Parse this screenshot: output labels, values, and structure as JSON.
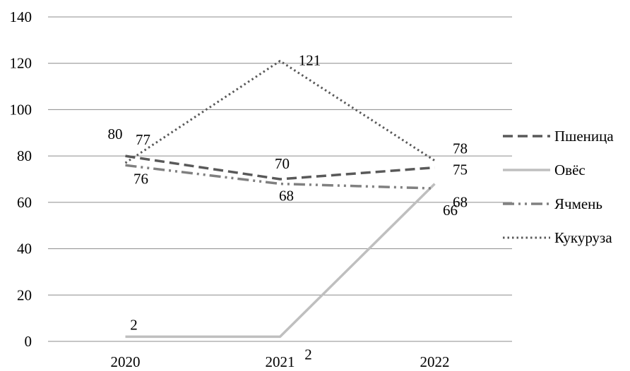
{
  "chart_data": {
    "type": "line",
    "x": [
      "2020",
      "2021",
      "2022"
    ],
    "ylim": [
      0,
      140
    ],
    "yticks": [
      0,
      20,
      40,
      60,
      80,
      100,
      120,
      140
    ],
    "grid": true,
    "legend_position": "right",
    "series": [
      {
        "name": "Пшеница",
        "values": [
          80,
          70,
          75
        ],
        "labels": [
          "80",
          "70",
          "75"
        ],
        "color": "#595959",
        "style": "dashed"
      },
      {
        "name": "Овёс",
        "values": [
          2,
          2,
          68
        ],
        "labels": [
          "2",
          "2",
          "68"
        ],
        "color": "#bfbfbf",
        "style": "solid"
      },
      {
        "name": "Ячмень",
        "values": [
          76,
          68,
          66
        ],
        "labels": [
          "76",
          "68",
          "66"
        ],
        "color": "#808080",
        "style": "dash-dot-dot"
      },
      {
        "name": "Кукуруза",
        "values": [
          77,
          121,
          78
        ],
        "labels": [
          "77",
          "121",
          "78"
        ],
        "color": "#595959",
        "style": "dotted"
      }
    ]
  }
}
